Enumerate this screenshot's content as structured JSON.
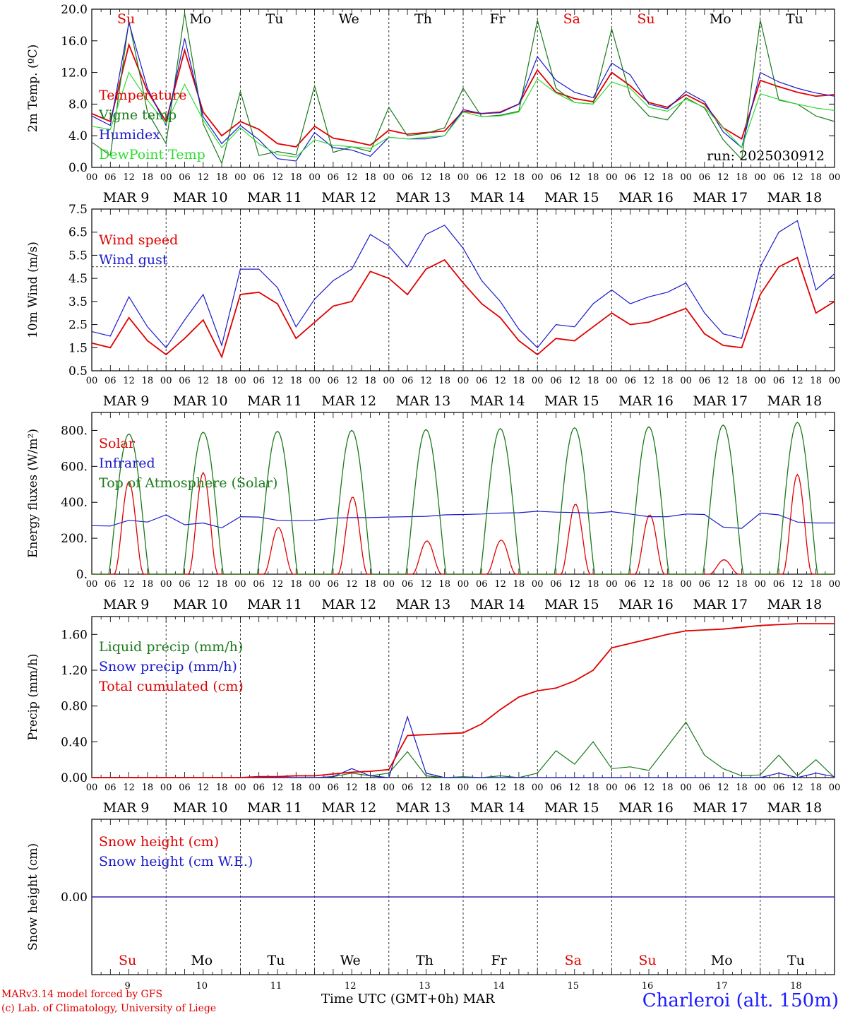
{
  "days": [
    "Su",
    "Mo",
    "Tu",
    "We",
    "Th",
    "Fr",
    "Sa",
    "Su",
    "Mo",
    "Tu"
  ],
  "day_colors": [
    "#e00000",
    "#000000",
    "#000000",
    "#000000",
    "#000000",
    "#000000",
    "#e00000",
    "#e00000",
    "#000000",
    "#000000"
  ],
  "date_labels": [
    "MAR  9",
    "MAR 10",
    "MAR 11",
    "MAR 12",
    "MAR 13",
    "MAR 14",
    "MAR 15",
    "MAR 16",
    "MAR 17",
    "MAR 18"
  ],
  "hour_ticks": [
    "00",
    "06",
    "12",
    "18"
  ],
  "bottom_day_numbers": [
    "9",
    "10",
    "11",
    "12",
    "13",
    "14",
    "15",
    "16",
    "17",
    "18"
  ],
  "run_label": "run: 2025030912",
  "footer": {
    "model": "MARv3.14 model forced by GFS",
    "credit": "(c) Lab. of Climatology, University of Liege",
    "axis_title": "Time UTC (GMT+0h) MAR",
    "station": "Charleroi (alt. 150m)"
  },
  "colors": {
    "red": "#e00000",
    "green": "#1a7a1a",
    "blue": "#1a1acc",
    "lightgreen": "#33dd33"
  },
  "chart_data": [
    {
      "type": "line",
      "ylabel": "2m Temp. (ºC)",
      "ylim": [
        0,
        20
      ],
      "yticks": [
        "0.0",
        "4.0",
        "8.0",
        "12.0",
        "16.0",
        "20.0"
      ],
      "x_hours": [
        0,
        6,
        12,
        18,
        24,
        30,
        36,
        42,
        48,
        54,
        60,
        66,
        72,
        78,
        84,
        90,
        96,
        102,
        108,
        114,
        120,
        126,
        132,
        138,
        144,
        150,
        156,
        162,
        168,
        174,
        180,
        186,
        192,
        198,
        204,
        210,
        216,
        222,
        228,
        234,
        240
      ],
      "series": [
        {
          "name": "Temperature",
          "color": "red",
          "values": [
            6.8,
            5.8,
            15.5,
            9.6,
            5.8,
            14.8,
            7.0,
            4.0,
            5.8,
            4.8,
            3.0,
            2.6,
            5.2,
            3.7,
            3.3,
            2.8,
            4.7,
            4.2,
            4.4,
            4.6,
            7.1,
            6.8,
            7.0,
            8.0,
            12.3,
            9.5,
            8.7,
            8.3,
            12.0,
            10.3,
            8.2,
            7.6,
            9.2,
            8.0,
            5.0,
            3.6,
            11.0,
            10.2,
            9.5,
            9.0,
            9.2
          ]
        },
        {
          "name": "Vigne temp",
          "color": "green",
          "values": [
            3.2,
            1.5,
            18.5,
            7.0,
            3.0,
            19.5,
            5.5,
            0.5,
            9.6,
            1.5,
            2.0,
            1.6,
            10.3,
            1.9,
            2.6,
            2.0,
            7.6,
            4.0,
            4.3,
            5.0,
            10.0,
            6.4,
            6.6,
            7.1,
            18.6,
            10.0,
            8.2,
            8.0,
            17.5,
            9.0,
            6.5,
            6.0,
            8.8,
            7.5,
            3.5,
            1.0,
            18.6,
            8.5,
            8.0,
            6.5,
            5.8
          ]
        },
        {
          "name": "Humidex",
          "color": "blue",
          "values": [
            6.5,
            5.3,
            18.3,
            10.0,
            5.3,
            16.3,
            6.4,
            3.0,
            5.3,
            3.5,
            1.1,
            0.8,
            4.4,
            2.5,
            2.2,
            1.4,
            3.8,
            3.6,
            3.6,
            4.0,
            7.3,
            6.8,
            6.9,
            8.0,
            14.0,
            11.0,
            9.5,
            8.8,
            13.2,
            11.7,
            8.0,
            7.4,
            9.6,
            8.3,
            4.5,
            2.5,
            12.0,
            10.8,
            10.0,
            9.4,
            9.0
          ]
        },
        {
          "name": "DewPoint Temp",
          "color": "lightgreen",
          "values": [
            5.2,
            4.8,
            12.0,
            8.5,
            5.5,
            10.5,
            6.0,
            2.5,
            5.0,
            3.0,
            1.6,
            1.3,
            3.5,
            2.8,
            2.6,
            2.4,
            3.8,
            3.6,
            3.8,
            4.0,
            7.0,
            6.4,
            6.5,
            7.0,
            11.2,
            9.4,
            8.2,
            8.0,
            10.8,
            10.0,
            7.6,
            7.1,
            8.6,
            7.6,
            5.0,
            2.5,
            9.3,
            8.6,
            8.0,
            7.5,
            7.2
          ]
        }
      ]
    },
    {
      "type": "line",
      "ylabel": "10m Wind (m/s)",
      "ylim": [
        0.5,
        7.5
      ],
      "yticks": [
        "0.5",
        "1.5",
        "2.5",
        "3.5",
        "4.5",
        "5.5",
        "6.5",
        "7.5"
      ],
      "threshold": 5.0,
      "x_hours": [
        0,
        6,
        12,
        18,
        24,
        30,
        36,
        42,
        48,
        54,
        60,
        66,
        72,
        78,
        84,
        90,
        96,
        102,
        108,
        114,
        120,
        126,
        132,
        138,
        144,
        150,
        156,
        162,
        168,
        174,
        180,
        186,
        192,
        198,
        204,
        210,
        216,
        222,
        228,
        234,
        240
      ],
      "series": [
        {
          "name": "Wind speed",
          "color": "red",
          "values": [
            1.7,
            1.5,
            2.8,
            1.8,
            1.2,
            1.9,
            2.7,
            1.1,
            3.8,
            3.9,
            3.4,
            1.9,
            2.6,
            3.3,
            3.5,
            4.8,
            4.5,
            3.8,
            4.9,
            5.3,
            4.3,
            3.4,
            2.8,
            1.8,
            1.2,
            1.9,
            1.8,
            2.4,
            3.0,
            2.5,
            2.6,
            2.9,
            3.2,
            2.1,
            1.6,
            1.5,
            3.8,
            5.0,
            5.4,
            3.0,
            3.5
          ]
        },
        {
          "name": "Wind gust",
          "color": "blue",
          "values": [
            2.2,
            2.0,
            3.7,
            2.4,
            1.5,
            2.7,
            3.8,
            1.6,
            4.9,
            4.9,
            4.1,
            2.4,
            3.6,
            4.4,
            4.9,
            6.4,
            5.9,
            5.0,
            6.4,
            6.8,
            5.8,
            4.4,
            3.5,
            2.3,
            1.5,
            2.5,
            2.4,
            3.4,
            4.0,
            3.4,
            3.7,
            3.9,
            4.3,
            3.0,
            2.1,
            1.9,
            5.0,
            6.5,
            7.0,
            4.0,
            4.7
          ]
        }
      ]
    },
    {
      "type": "line",
      "ylabel": "Energy fluxes (W/m²)",
      "ylim": [
        0,
        900
      ],
      "yticks": [
        "0.",
        "200.",
        "400.",
        "600.",
        "800."
      ],
      "x_hours": [
        0,
        6,
        12,
        18,
        24,
        30,
        36,
        42,
        48,
        54,
        60,
        66,
        72,
        78,
        84,
        90,
        96,
        102,
        108,
        114,
        120,
        126,
        132,
        138,
        144,
        150,
        156,
        162,
        168,
        174,
        180,
        186,
        192,
        198,
        204,
        210,
        216,
        222,
        228,
        234,
        240
      ],
      "series": [
        {
          "name": "Solar",
          "color": "red",
          "peaks": [
            {
              "hour": 12.0,
              "value": 515
            },
            {
              "hour": 36.0,
              "value": 565
            },
            {
              "hour": 60.3,
              "value": 260
            },
            {
              "hour": 84.3,
              "value": 430
            },
            {
              "hour": 108.3,
              "value": 185
            },
            {
              "hour": 132.3,
              "value": 190
            },
            {
              "hour": 156.3,
              "value": 390
            },
            {
              "hour": 180.3,
              "value": 330
            },
            {
              "hour": 204.3,
              "value": 80
            },
            {
              "hour": 228.0,
              "value": 555
            }
          ]
        },
        {
          "name": "Infrared",
          "color": "blue",
          "values": [
            270,
            268,
            300,
            290,
            330,
            275,
            285,
            258,
            320,
            318,
            300,
            298,
            300,
            312,
            315,
            315,
            318,
            320,
            322,
            330,
            332,
            335,
            340,
            342,
            350,
            345,
            343,
            340,
            348,
            335,
            320,
            320,
            335,
            332,
            262,
            255,
            340,
            330,
            290,
            285,
            285
          ]
        },
        {
          "name": "Top of Atmosphere (Solar)",
          "color": "green",
          "peaks": [
            {
              "hour": 12.0,
              "value": 780
            },
            {
              "hour": 36.0,
              "value": 790
            },
            {
              "hour": 60.0,
              "value": 795
            },
            {
              "hour": 84.0,
              "value": 800
            },
            {
              "hour": 108.0,
              "value": 805
            },
            {
              "hour": 132.0,
              "value": 810
            },
            {
              "hour": 156.0,
              "value": 815
            },
            {
              "hour": 180.0,
              "value": 820
            },
            {
              "hour": 204.0,
              "value": 830
            },
            {
              "hour": 228.0,
              "value": 845
            }
          ]
        }
      ]
    },
    {
      "type": "line",
      "ylabel": "Precip (mm/h)",
      "ylim": [
        0,
        1.8
      ],
      "yticks": [
        "0.00",
        "0.40",
        "0.80",
        "1.20",
        "1.60"
      ],
      "x_hours": [
        0,
        6,
        12,
        18,
        24,
        30,
        36,
        42,
        48,
        54,
        60,
        66,
        72,
        78,
        84,
        90,
        96,
        102,
        108,
        114,
        120,
        126,
        132,
        138,
        144,
        150,
        156,
        162,
        168,
        174,
        180,
        186,
        192,
        198,
        204,
        210,
        216,
        222,
        228,
        234,
        240
      ],
      "series": [
        {
          "name": "Liquid precip (mm/h)",
          "color": "green",
          "values": [
            0,
            0,
            0,
            0,
            0,
            0,
            0,
            0,
            0,
            0,
            0,
            0,
            0,
            0.01,
            0.05,
            0.02,
            0.05,
            0.29,
            0.02,
            0,
            0.01,
            0,
            0.02,
            0,
            0.05,
            0.3,
            0.15,
            0.4,
            0.1,
            0.12,
            0.08,
            0.35,
            0.62,
            0.25,
            0.1,
            0.02,
            0.03,
            0.25,
            0.02,
            0.2,
            0.0
          ]
        },
        {
          "name": "Snow precip (mm/h)",
          "color": "blue",
          "values": [
            0,
            0,
            0,
            0,
            0,
            0,
            0,
            0,
            0,
            0,
            0,
            0,
            0,
            0.01,
            0.1,
            0.02,
            0,
            0.68,
            0.05,
            0,
            0,
            0,
            0,
            0,
            0,
            0,
            0,
            0,
            0,
            0,
            0,
            0,
            0,
            0,
            0,
            0,
            0,
            0.05,
            0,
            0.05,
            0.01
          ]
        },
        {
          "name": "Total cumulated (cm)",
          "color": "red",
          "values": [
            0,
            0,
            0,
            0,
            0,
            0,
            0,
            0,
            0,
            0.01,
            0.01,
            0.02,
            0.02,
            0.04,
            0.06,
            0.07,
            0.09,
            0.47,
            0.48,
            0.49,
            0.5,
            0.6,
            0.76,
            0.9,
            0.97,
            1.0,
            1.08,
            1.2,
            1.45,
            1.5,
            1.55,
            1.6,
            1.64,
            1.65,
            1.66,
            1.68,
            1.7,
            1.71,
            1.72,
            1.72,
            1.72
          ]
        }
      ]
    },
    {
      "type": "line",
      "ylabel": "Snow height (cm)",
      "ylim": [
        -1,
        1
      ],
      "yticks": [
        "0.00"
      ],
      "series": [
        {
          "name": "Snow height (cm)",
          "color": "red",
          "values": [
            0,
            0
          ]
        },
        {
          "name": "Snow height (cm W.E.)",
          "color": "blue",
          "values": [
            0,
            0
          ]
        }
      ]
    }
  ]
}
